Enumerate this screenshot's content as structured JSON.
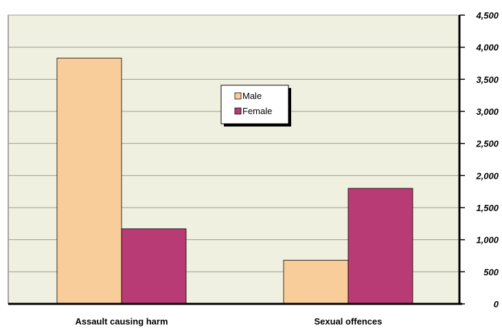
{
  "chart_data": {
    "type": "bar",
    "categories": [
      "Assault causing harm",
      "Sexual offences"
    ],
    "series": [
      {
        "name": "Male",
        "values": [
          3830,
          680
        ]
      },
      {
        "name": "Female",
        "values": [
          1170,
          1800
        ]
      }
    ],
    "ylim": [
      0,
      4500
    ],
    "yticks": [
      0,
      500,
      1000,
      1500,
      2000,
      2500,
      3000,
      3500,
      4000,
      4500
    ],
    "ytick_labels": [
      "0",
      "500",
      "1,000",
      "1,500",
      "2,000",
      "2,500",
      "3,000",
      "3,500",
      "4,000",
      "4,500"
    ],
    "grid": true,
    "y_axis_side": "right",
    "legend_position": "top-center",
    "colors": {
      "plot_background": "#f0f0e0",
      "male": "#f9cd9a",
      "female": "#b83b75",
      "grid": "#999999"
    }
  }
}
